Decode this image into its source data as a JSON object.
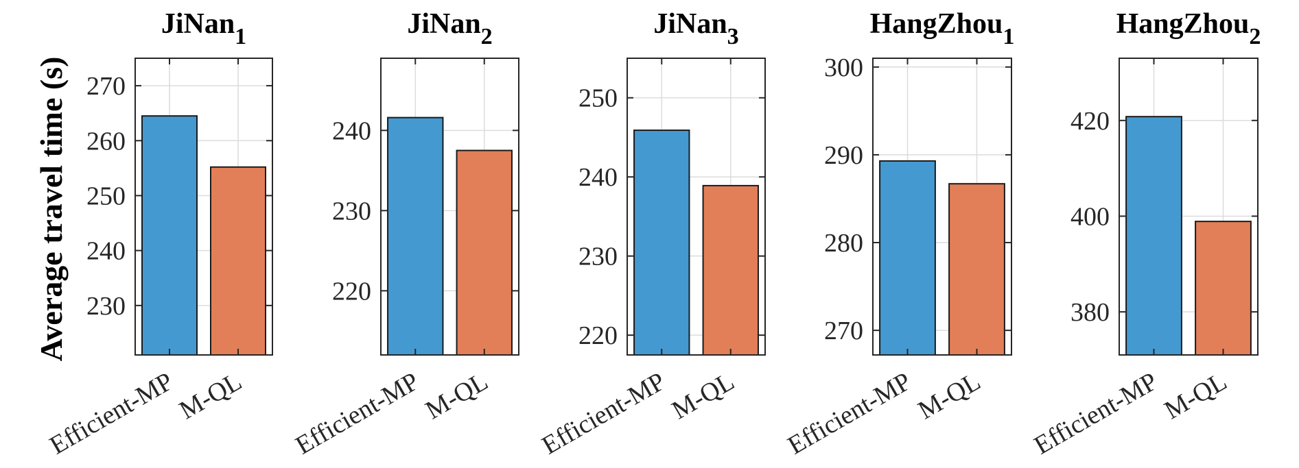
{
  "figure": {
    "ylabel": "Average travel time (s)",
    "colors": {
      "series1": "#4599d1",
      "series2": "#e27f58",
      "grid": "#dcdcdc",
      "axis": "#262626"
    }
  },
  "chart_data": [
    {
      "type": "bar",
      "title_base": "JiNan",
      "title_sub": "1",
      "categories": [
        "Efficient-MP",
        "M-QL"
      ],
      "values": [
        264.5,
        255.2
      ],
      "ylim": [
        221,
        275
      ],
      "yticks": [
        230,
        240,
        250,
        260,
        270
      ]
    },
    {
      "type": "bar",
      "title_base": "JiNan",
      "title_sub": "2",
      "categories": [
        "Efficient-MP",
        "M-QL"
      ],
      "values": [
        241.6,
        237.5
      ],
      "ylim": [
        212,
        249
      ],
      "yticks": [
        220,
        230,
        240
      ]
    },
    {
      "type": "bar",
      "title_base": "JiNan",
      "title_sub": "3",
      "categories": [
        "Efficient-MP",
        "M-QL"
      ],
      "values": [
        245.9,
        238.9
      ],
      "ylim": [
        217.5,
        255
      ],
      "yticks": [
        220,
        230,
        240,
        250
      ]
    },
    {
      "type": "bar",
      "title_base": "HangZhou",
      "title_sub": "1",
      "categories": [
        "Efficient-MP",
        "M-QL"
      ],
      "values": [
        289.3,
        286.7
      ],
      "ylim": [
        267.2,
        301
      ],
      "yticks": [
        270,
        280,
        290,
        300
      ]
    },
    {
      "type": "bar",
      "title_base": "HangZhou",
      "title_sub": "2",
      "categories": [
        "Efficient-MP",
        "M-QL"
      ],
      "values": [
        420.8,
        398.9
      ],
      "ylim": [
        371,
        433
      ],
      "yticks": [
        380,
        400,
        420
      ]
    }
  ]
}
